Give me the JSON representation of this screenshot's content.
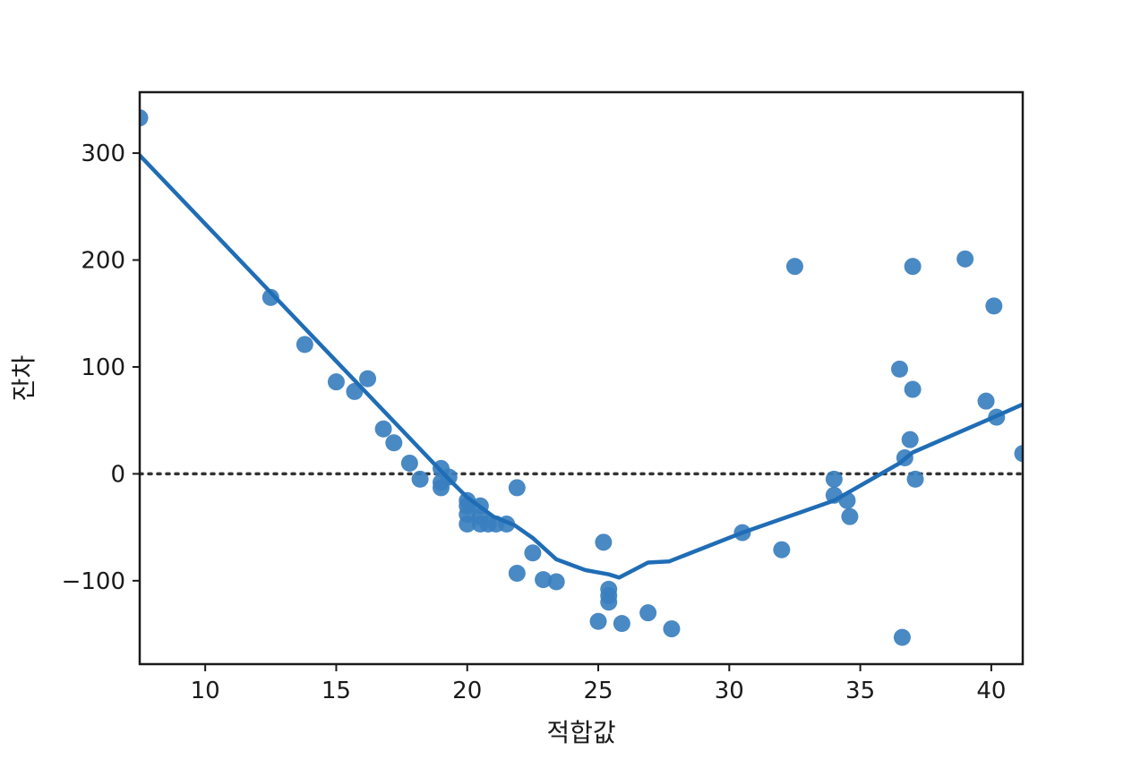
{
  "chart_data": {
    "type": "scatter",
    "title": "",
    "xlabel": "적합값",
    "ylabel": "잔차",
    "xlim": [
      7.5,
      41.2
    ],
    "ylim": [
      -178,
      357
    ],
    "xticks": [
      10,
      15,
      20,
      25,
      30,
      35,
      40
    ],
    "xtick_labels": [
      "10",
      "15",
      "20",
      "25",
      "30",
      "35",
      "40"
    ],
    "yticks": [
      -100,
      0,
      100,
      200,
      300
    ],
    "ytick_labels": [
      "−100",
      "0",
      "100",
      "200",
      "300"
    ],
    "grid": false,
    "reference_line": {
      "y": 0,
      "style": "dotted",
      "color": "#333333"
    },
    "colors": {
      "points": "#3a7fbf",
      "line": "#1f6db5"
    },
    "points": [
      [
        7.5,
        333
      ],
      [
        12.5,
        165
      ],
      [
        13.8,
        121
      ],
      [
        15.0,
        86
      ],
      [
        15.7,
        77
      ],
      [
        16.2,
        89
      ],
      [
        16.8,
        42
      ],
      [
        17.2,
        29
      ],
      [
        17.8,
        10
      ],
      [
        18.2,
        -5
      ],
      [
        19.0,
        5
      ],
      [
        19.0,
        -8
      ],
      [
        19.0,
        -13
      ],
      [
        19.3,
        -3
      ],
      [
        20.0,
        -25
      ],
      [
        20.0,
        -30
      ],
      [
        20.0,
        -38
      ],
      [
        20.0,
        -47
      ],
      [
        20.5,
        -30
      ],
      [
        20.5,
        -40
      ],
      [
        20.5,
        -47
      ],
      [
        20.8,
        -47
      ],
      [
        21.1,
        -47
      ],
      [
        21.5,
        -47
      ],
      [
        21.9,
        -13
      ],
      [
        21.9,
        -93
      ],
      [
        22.5,
        -74
      ],
      [
        22.9,
        -99
      ],
      [
        23.4,
        -101
      ],
      [
        25.0,
        -138
      ],
      [
        25.2,
        -64
      ],
      [
        25.4,
        -108
      ],
      [
        25.4,
        -114
      ],
      [
        25.4,
        -120
      ],
      [
        25.9,
        -140
      ],
      [
        26.9,
        -130
      ],
      [
        27.8,
        -145
      ],
      [
        30.5,
        -55
      ],
      [
        32.0,
        -71
      ],
      [
        32.5,
        194
      ],
      [
        34.0,
        -5
      ],
      [
        34.0,
        -20
      ],
      [
        34.5,
        -25
      ],
      [
        34.6,
        -40
      ],
      [
        36.5,
        98
      ],
      [
        36.6,
        -153
      ],
      [
        36.7,
        15
      ],
      [
        36.9,
        32
      ],
      [
        37.0,
        79
      ],
      [
        37.0,
        194
      ],
      [
        37.1,
        -5
      ],
      [
        39.0,
        201
      ],
      [
        39.8,
        68
      ],
      [
        40.1,
        157
      ],
      [
        40.2,
        53
      ],
      [
        41.2,
        19
      ]
    ],
    "fit_line": [
      [
        7.5,
        298
      ],
      [
        19.3,
        -5
      ],
      [
        20.0,
        -22
      ],
      [
        21.0,
        -40
      ],
      [
        21.8,
        -48
      ],
      [
        22.5,
        -60
      ],
      [
        23.4,
        -80
      ],
      [
        24.5,
        -90
      ],
      [
        25.4,
        -94
      ],
      [
        25.8,
        -97
      ],
      [
        26.9,
        -83
      ],
      [
        27.7,
        -82
      ],
      [
        30.5,
        -55
      ],
      [
        34.0,
        -25
      ],
      [
        36.5,
        10
      ],
      [
        37.0,
        20
      ],
      [
        40.0,
        52
      ],
      [
        41.2,
        65
      ]
    ]
  }
}
